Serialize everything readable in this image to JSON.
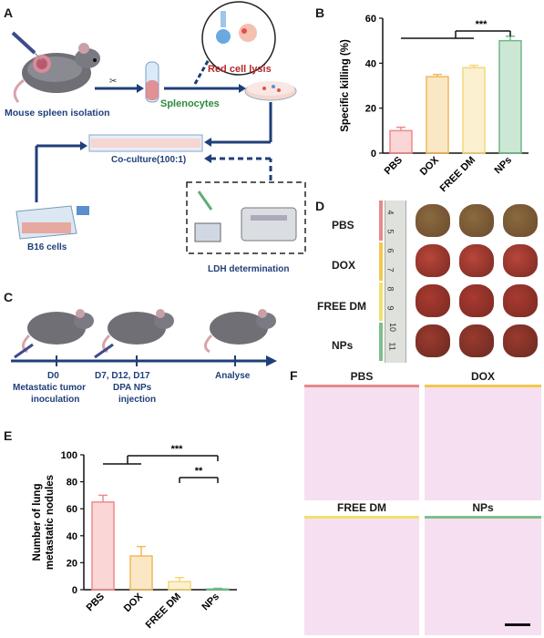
{
  "panels": {
    "A": "A",
    "B": "B",
    "C": "C",
    "D": "D",
    "E": "E",
    "F": "F"
  },
  "panelA": {
    "mouse_spleen_isolation": "Mouse spleen isolation",
    "splenocytes": "Splenocytes",
    "red_cell_lysis": "Red cell lysis",
    "coculture": "Co-culture(100:1)",
    "b16_cells": "B16 cells",
    "ldh_determination": "LDH determination"
  },
  "panelC": {
    "t0_day": "D0",
    "t0_desc_1": "Metastatic tumor",
    "t0_desc_2": "inoculation",
    "t1_day": "D7, D12, D17",
    "t1_desc_1": "DPA NPs",
    "t1_desc_2": "injection",
    "t2_desc": "Analyse"
  },
  "panelD": {
    "rows": [
      "PBS",
      "DOX",
      "FREE DM",
      "NPs"
    ],
    "ruler_numbers": [
      "4",
      "5",
      "6",
      "7",
      "8",
      "9",
      "10",
      "11"
    ]
  },
  "panelF": {
    "titles": [
      "PBS",
      "DOX",
      "FREE DM",
      "NPs"
    ],
    "bar_colors": [
      "#e88a8a",
      "#f2c84b",
      "#f2e06a",
      "#7fbf8a"
    ]
  },
  "colors": {
    "pbs": "#f08a8a",
    "dox": "#f2b95a",
    "freedm": "#f3d77a",
    "nps": "#6fb987"
  },
  "chart_data": [
    {
      "id": "B",
      "type": "bar",
      "categories": [
        "PBS",
        "DOX",
        "FREE DM",
        "NPs"
      ],
      "values": [
        10,
        34,
        38,
        50
      ],
      "errors": [
        1.5,
        1,
        1,
        2
      ],
      "ylabel": "Specific killing (%)",
      "ylim": [
        0,
        60
      ],
      "yticks": [
        "0",
        "20",
        "40",
        "60"
      ],
      "significance": "***"
    },
    {
      "id": "E",
      "type": "bar",
      "categories": [
        "PBS",
        "DOX",
        "FREE DM",
        "NPs"
      ],
      "values": [
        65,
        25,
        6,
        0.5
      ],
      "errors": [
        5,
        7,
        3,
        0.5
      ],
      "ylabel": "Number of lung metastatic nodules",
      "ylabel_lines": [
        "Number of lung",
        "metastatic nodules"
      ],
      "ylim": [
        0,
        100
      ],
      "yticks": [
        "0",
        "20",
        "40",
        "60",
        "80",
        "100"
      ],
      "significance": [
        "***",
        "**"
      ]
    }
  ]
}
